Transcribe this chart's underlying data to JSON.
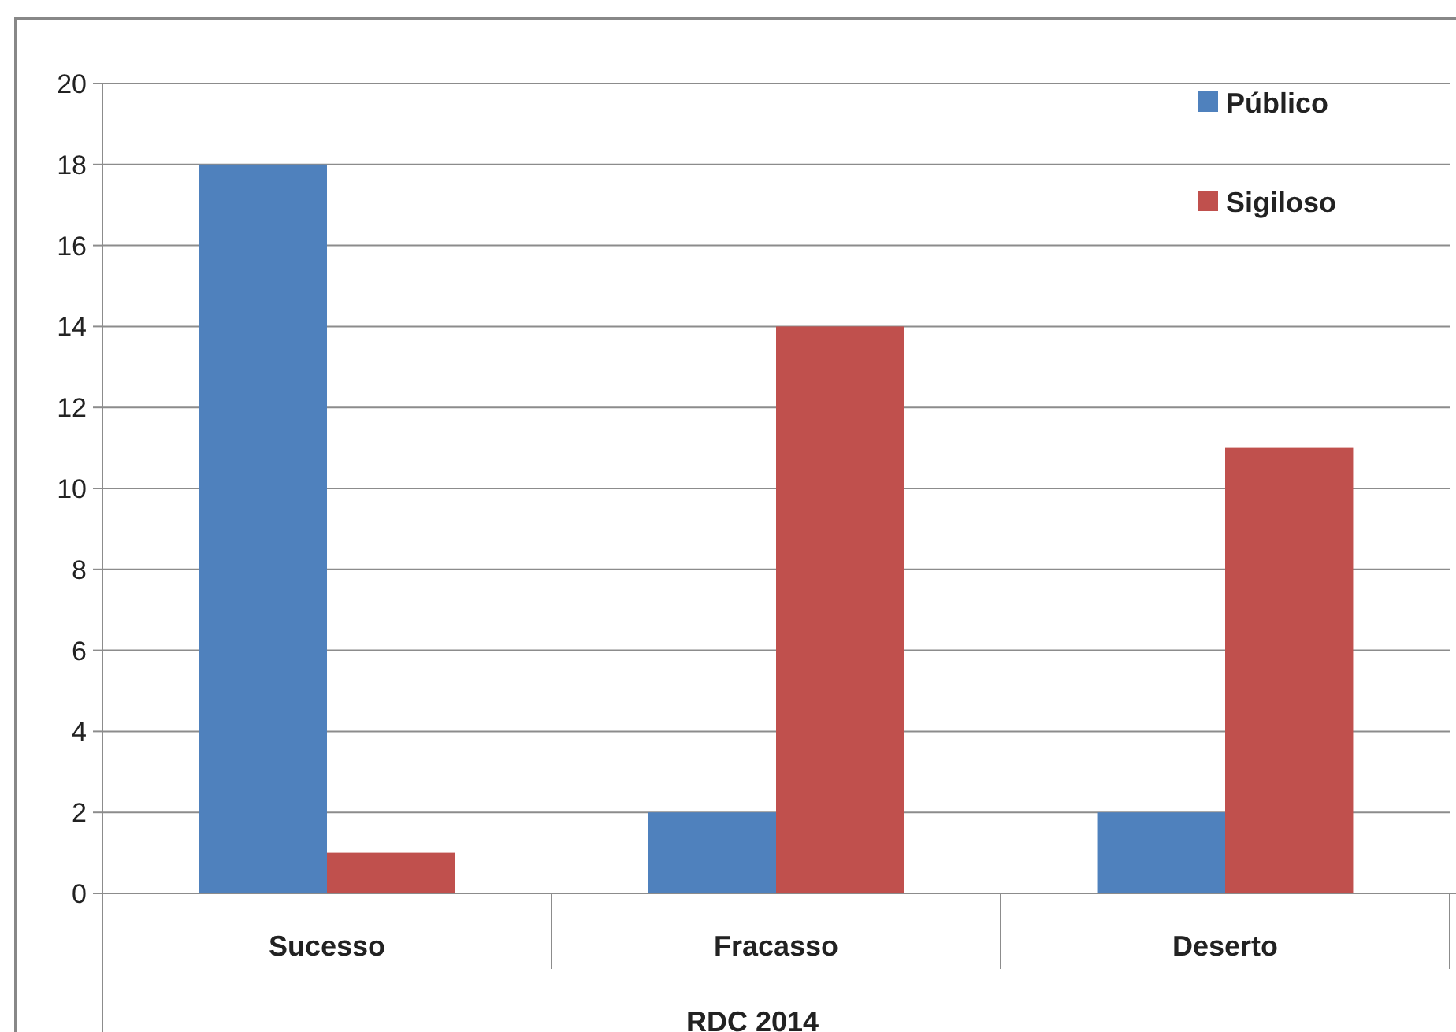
{
  "chart_data": {
    "type": "bar",
    "categories": [
      "Sucesso",
      "Fracasso",
      "Deserto"
    ],
    "xlabel": "RDC 2014",
    "series": [
      {
        "name": "Público",
        "color": "#4f81bd",
        "values": [
          18,
          2,
          2
        ]
      },
      {
        "name": "Sigiloso",
        "color": "#c0504d",
        "values": [
          1,
          14,
          11
        ]
      }
    ],
    "ylim": [
      0,
      20
    ],
    "yticks": [
      0,
      2,
      4,
      6,
      8,
      10,
      12,
      14,
      16,
      18,
      20
    ],
    "grid": "y",
    "legend": "top right"
  }
}
